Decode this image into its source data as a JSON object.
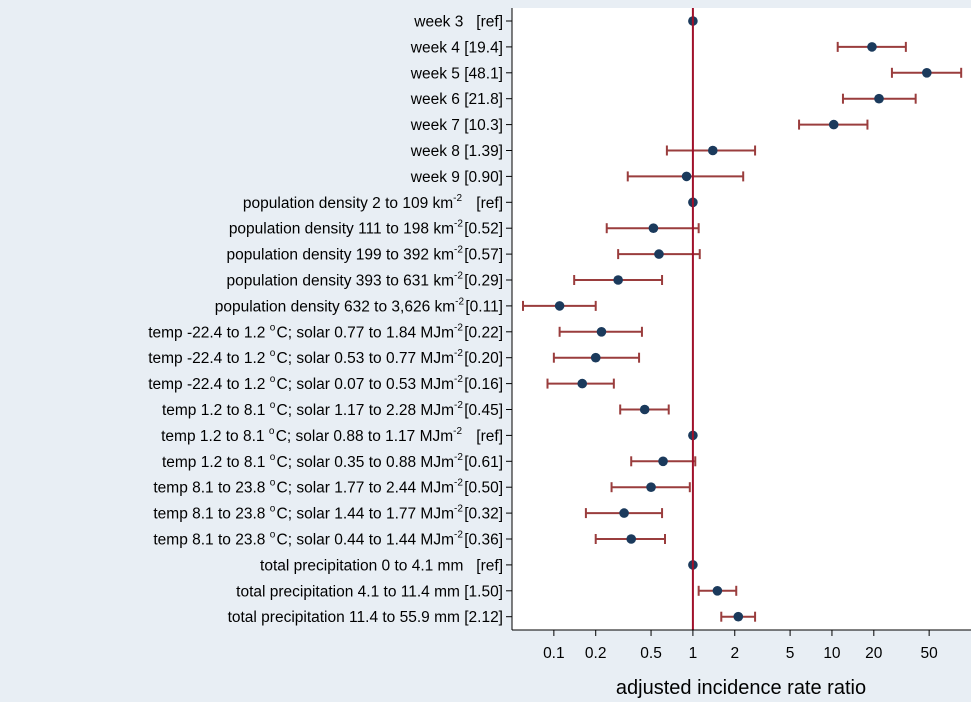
{
  "chart_data": {
    "type": "forest",
    "xlabel": "adjusted incidence rate ratio",
    "x_scale": "log",
    "xlim": [
      0.05,
      100
    ],
    "x_ticks": [
      0.1,
      0.2,
      0.5,
      1,
      2,
      5,
      10,
      20,
      50
    ],
    "x_tick_labels": [
      "0.1",
      "0.2",
      "0.5",
      "1",
      "2",
      "5",
      "10",
      "20",
      "50"
    ],
    "reference_line": 1,
    "colors": {
      "point": "#1b3a5c",
      "ci_line": "#9a3d3d",
      "reference_line": "#a0102a",
      "plot_background": "#ffffff",
      "page_background": "#e8eef4"
    },
    "rows": [
      {
        "label": "week 3",
        "sup": "",
        "label_tail": "",
        "value_text": "[ref]",
        "est": 1,
        "lo": null,
        "hi": null
      },
      {
        "label": "week 4",
        "sup": "",
        "label_tail": "",
        "value_text": "[19.4]",
        "est": 19.4,
        "lo": 11,
        "hi": 34
      },
      {
        "label": "week 5",
        "sup": "",
        "label_tail": "",
        "value_text": "[48.1]",
        "est": 48.1,
        "lo": 27,
        "hi": 85
      },
      {
        "label": "week 6",
        "sup": "",
        "label_tail": "",
        "value_text": "[21.8]",
        "est": 21.8,
        "lo": 12,
        "hi": 40
      },
      {
        "label": "week 7",
        "sup": "",
        "label_tail": "",
        "value_text": "[10.3]",
        "est": 10.3,
        "lo": 5.8,
        "hi": 18
      },
      {
        "label": "week 8",
        "sup": "",
        "label_tail": "",
        "value_text": "[1.39]",
        "est": 1.39,
        "lo": 0.65,
        "hi": 2.8
      },
      {
        "label": "week 9",
        "sup": "",
        "label_tail": "",
        "value_text": "[0.90]",
        "est": 0.9,
        "lo": 0.34,
        "hi": 2.3
      },
      {
        "label": "population density 2 to 109 km",
        "sup": "-2",
        "label_tail": "",
        "value_text": "[ref]",
        "est": 1,
        "lo": null,
        "hi": null
      },
      {
        "label": "population density 111 to 198 km",
        "sup": "-2",
        "label_tail": "",
        "value_text": "[0.52]",
        "est": 0.52,
        "lo": 0.24,
        "hi": 1.1
      },
      {
        "label": "population density 199 to 392 km",
        "sup": "-2",
        "label_tail": "",
        "value_text": "[0.57]",
        "est": 0.57,
        "lo": 0.29,
        "hi": 1.12
      },
      {
        "label": "population density 393 to 631 km",
        "sup": "-2",
        "label_tail": "",
        "value_text": "[0.29]",
        "est": 0.29,
        "lo": 0.14,
        "hi": 0.6
      },
      {
        "label": "population density 632 to 3,626 km",
        "sup": "-2",
        "label_tail": "",
        "value_text": "[0.11]",
        "est": 0.11,
        "lo": 0.06,
        "hi": 0.2
      },
      {
        "label": "temp -22.4 to 1.2 ",
        "sup": "o",
        "label_tail": "C; solar 0.77 to 1.84 MJm",
        "sup2": "-2",
        "value_text": "[0.22]",
        "est": 0.22,
        "lo": 0.11,
        "hi": 0.43
      },
      {
        "label": "temp -22.4 to 1.2 ",
        "sup": "o",
        "label_tail": "C; solar 0.53 to 0.77 MJm",
        "sup2": "-2",
        "value_text": "[0.20]",
        "est": 0.2,
        "lo": 0.1,
        "hi": 0.41
      },
      {
        "label": "temp -22.4 to 1.2 ",
        "sup": "o",
        "label_tail": "C; solar 0.07 to 0.53 MJm",
        "sup2": "-2",
        "value_text": "[0.16]",
        "est": 0.16,
        "lo": 0.09,
        "hi": 0.27
      },
      {
        "label": "temp 1.2 to 8.1 ",
        "sup": "o",
        "label_tail": "C; solar 1.17 to 2.28 MJm",
        "sup2": "-2",
        "value_text": "[0.45]",
        "est": 0.45,
        "lo": 0.3,
        "hi": 0.67
      },
      {
        "label": "temp 1.2 to 8.1 ",
        "sup": "o",
        "label_tail": "C; solar 0.88 to 1.17 MJm",
        "sup2": "-2",
        "value_text": "[ref]",
        "est": 1,
        "lo": null,
        "hi": null
      },
      {
        "label": "temp 1.2 to 8.1 ",
        "sup": "o",
        "label_tail": "C; solar 0.35 to 0.88 MJm",
        "sup2": "-2",
        "value_text": "[0.61]",
        "est": 0.61,
        "lo": 0.36,
        "hi": 1.04
      },
      {
        "label": "temp 8.1 to 23.8 ",
        "sup": "o",
        "label_tail": "C; solar 1.77 to 2.44 MJm",
        "sup2": "-2",
        "value_text": "[0.50]",
        "est": 0.5,
        "lo": 0.26,
        "hi": 0.95
      },
      {
        "label": "temp 8.1 to 23.8 ",
        "sup": "o",
        "label_tail": "C; solar 1.44 to 1.77 MJm",
        "sup2": "-2",
        "value_text": "[0.32]",
        "est": 0.32,
        "lo": 0.17,
        "hi": 0.6
      },
      {
        "label": "temp 8.1 to 23.8 ",
        "sup": "o",
        "label_tail": "C; solar 0.44 to 1.44 MJm",
        "sup2": "-2",
        "value_text": "[0.36]",
        "est": 0.36,
        "lo": 0.2,
        "hi": 0.63
      },
      {
        "label": "total precipitation 0 to 4.1 mm",
        "sup": "",
        "label_tail": "",
        "value_text": "[ref]",
        "est": 1,
        "lo": null,
        "hi": null
      },
      {
        "label": "total precipitation 4.1 to 11.4 mm",
        "sup": "",
        "label_tail": "",
        "value_text": "[1.50]",
        "est": 1.5,
        "lo": 1.1,
        "hi": 2.05
      },
      {
        "label": "total precipitation 11.4 to 55.9 mm",
        "sup": "",
        "label_tail": "",
        "value_text": "[2.12]",
        "est": 2.12,
        "lo": 1.6,
        "hi": 2.8
      }
    ]
  }
}
